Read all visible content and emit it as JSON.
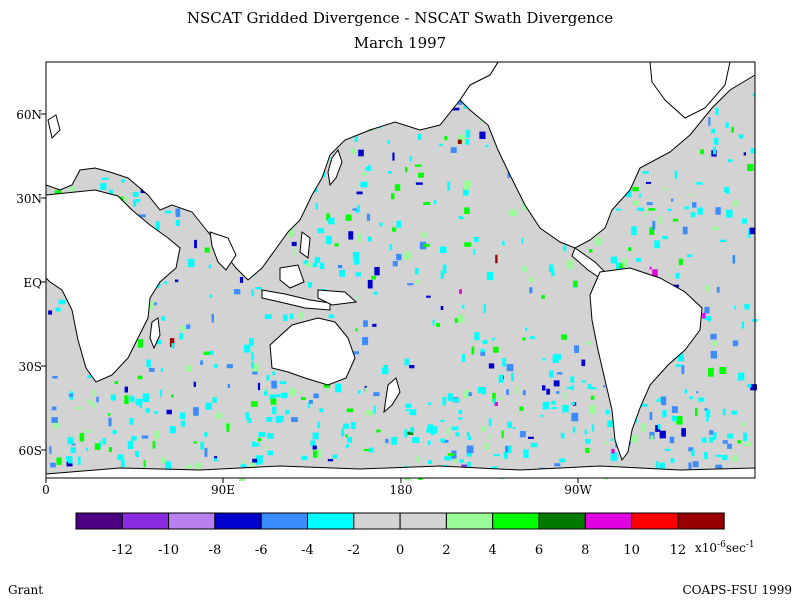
{
  "map": {
    "title_line1": "NSCAT Gridded Divergence - NSCAT Swath Divergence",
    "title_line2": "March 1997",
    "lat_labels": [
      "60N",
      "30N",
      "EQ",
      "30S",
      "60S"
    ],
    "lon_labels": [
      "0",
      "90E",
      "180",
      "90W"
    ],
    "land_color": "#ffffff",
    "no_data_color": "#d3d3d3",
    "coastline_color": "#000000"
  },
  "colorbar": {
    "colors": [
      "#4b0082",
      "#8a2be2",
      "#b87fee",
      "#0000cd",
      "#3a8cff",
      "#00ffff",
      "#d3d3d3",
      "#d3d3d3",
      "#98fb98",
      "#00ff00",
      "#007a00",
      "#e000e0",
      "#ff0000",
      "#990000"
    ],
    "labels": [
      "-12",
      "-10",
      "-8",
      "-6",
      "-4",
      "-2",
      "0",
      "2",
      "4",
      "6",
      "8",
      "10",
      "12"
    ],
    "units_prefix": "x10",
    "units_exp": "-6",
    "units_mid": "sec",
    "units_exp2": "-1"
  },
  "footer": {
    "left": "Grant",
    "right": "COAPS-FSU 1999"
  }
}
